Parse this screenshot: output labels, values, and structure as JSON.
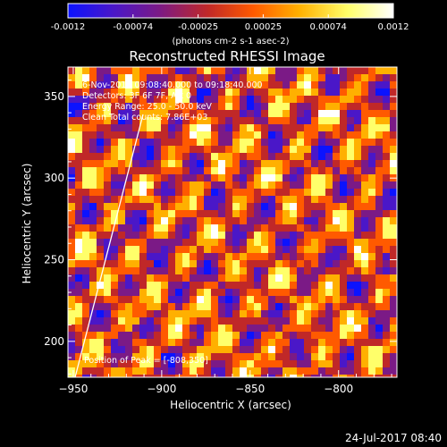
{
  "colorbar": {
    "ticks": [
      "-0.0012",
      "-0.00074",
      "-0.00025",
      "0.00025",
      "0.00074",
      "0.0012"
    ],
    "unit_label": "(photons cm-2 s-1 asec-2)",
    "colors": [
      "#0b13ff",
      "#4a17c8",
      "#7b1a86",
      "#c02828",
      "#ff5a00",
      "#ffb000",
      "#ffff6a",
      "#ffffff"
    ]
  },
  "title": "Reconstructed RHESSI Image",
  "annotations": {
    "time_range": "6-Nov-2014 09:08:40.000 to 09:18:40.000",
    "detectors": "Detectors: 3F 6F 7F, Att 0",
    "energy_range": "Energy Range: 25.0 - 50.0 keV",
    "clean_counts": "Clean    Total counts: 7.86E+03",
    "peak_position": "Position of Peak = [-808,350]"
  },
  "axes": {
    "xlabel": "Heliocentric X (arcsec)",
    "ylabel": "Heliocentric Y (arcsec)",
    "xticks": [
      -950,
      -900,
      -850,
      -800
    ],
    "yticks": [
      200,
      250,
      300,
      350
    ],
    "xlim": [
      -953,
      -767
    ],
    "ylim": [
      178,
      368
    ],
    "limb_line": true
  },
  "footer_timestamp": "24-Jul-2017 08:40"
}
